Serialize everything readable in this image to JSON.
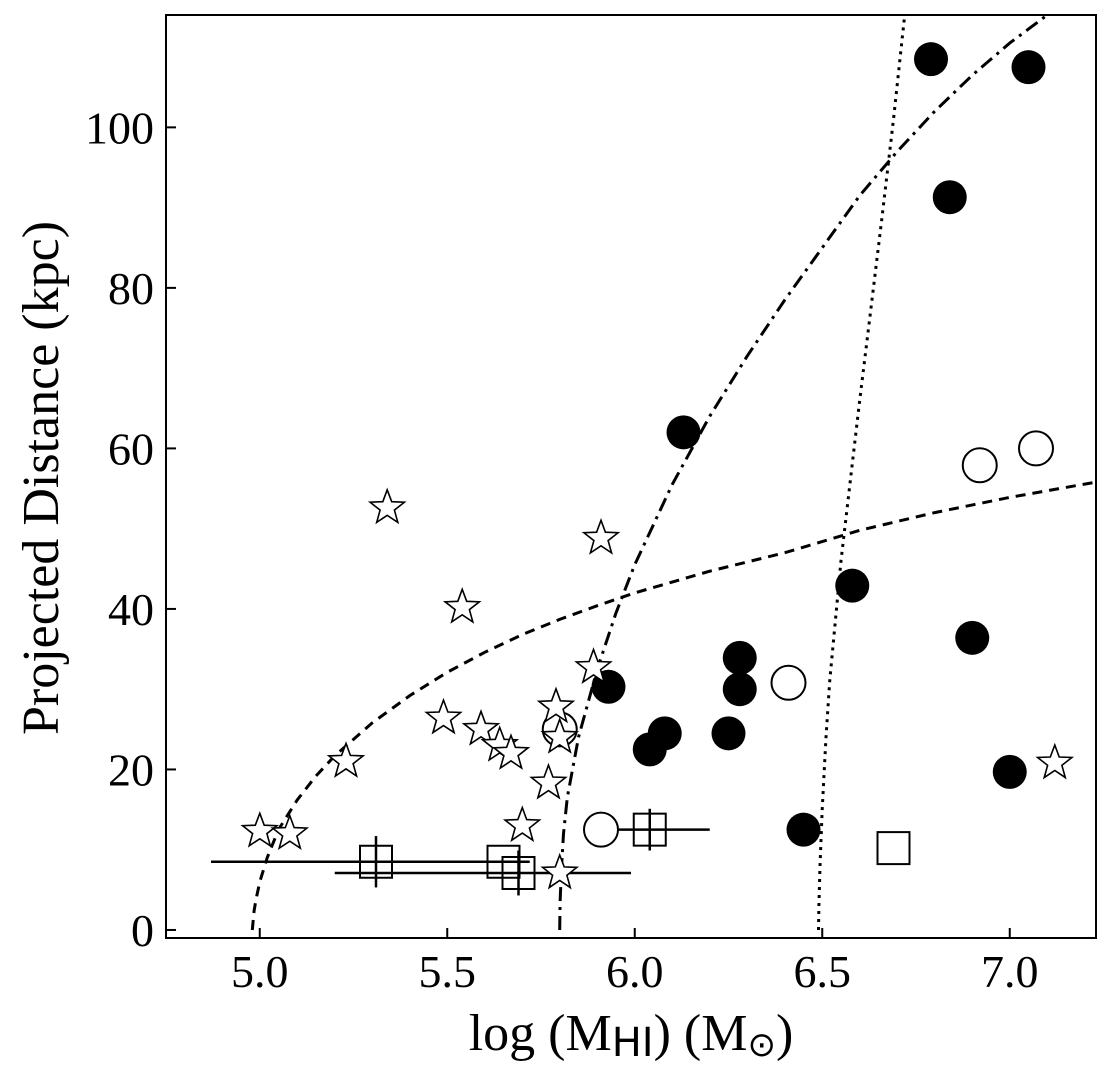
{
  "chart_data": {
    "type": "scatter",
    "xlabel": "log (M",
    "xlabel_sub": "HI",
    "xlabel_tail": ") (M",
    "xlabel_sun_symbol": "⊙",
    "xlabel_end": ")",
    "ylabel": "Projected Distance (kpc)",
    "xlim": [
      4.75,
      7.23
    ],
    "ylim": [
      -1,
      114
    ],
    "xticks": [
      5.0,
      5.5,
      6.0,
      6.5,
      7.0
    ],
    "xtick_labels": [
      "5.0",
      "5.5",
      "6.0",
      "6.5",
      "7.0"
    ],
    "yticks": [
      0,
      20,
      40,
      60,
      80,
      100
    ],
    "ytick_labels": [
      "0",
      "20",
      "40",
      "60",
      "80",
      "100"
    ],
    "series": [
      {
        "name": "filled-circles",
        "marker": "filled-circle",
        "points": [
          [
            6.79,
            108.5
          ],
          [
            7.05,
            107.5
          ],
          [
            6.84,
            91.3
          ],
          [
            6.13,
            62.0
          ],
          [
            5.93,
            30.3
          ],
          [
            6.04,
            22.5
          ],
          [
            6.08,
            24.5
          ],
          [
            6.25,
            24.5
          ],
          [
            6.28,
            33.9
          ],
          [
            6.28,
            30.0
          ],
          [
            6.58,
            42.9
          ],
          [
            6.9,
            36.4
          ],
          [
            7.0,
            19.7
          ],
          [
            6.45,
            12.5
          ]
        ]
      },
      {
        "name": "open-circles",
        "marker": "open-circle",
        "points": [
          [
            6.92,
            57.9
          ],
          [
            7.07,
            60.0
          ],
          [
            6.41,
            30.8
          ],
          [
            5.8,
            25.0
          ],
          [
            5.91,
            12.5
          ]
        ]
      },
      {
        "name": "open-squares",
        "marker": "open-square",
        "points": [
          {
            "x": 5.31,
            "y": 8.5,
            "xerr": [
              0.44,
              0.41
            ],
            "yerr": 3.2
          },
          {
            "x": 5.65,
            "y": 8.5
          },
          {
            "x": 5.69,
            "y": 7.1,
            "xerr": [
              0.49,
              0.3
            ],
            "yerr": 2.8
          },
          {
            "x": 6.04,
            "y": 12.5,
            "xerr": [
              0.16,
              0.16
            ],
            "yerr": 2.6
          },
          {
            "x": 6.69,
            "y": 10.2
          }
        ]
      },
      {
        "name": "open-stars",
        "marker": "open-star",
        "points": [
          [
            5.0,
            12.3
          ],
          [
            5.08,
            12.0
          ],
          [
            5.23,
            21.0
          ],
          [
            5.34,
            52.6
          ],
          [
            5.49,
            26.4
          ],
          [
            5.54,
            40.2
          ],
          [
            5.59,
            25.0
          ],
          [
            5.64,
            23.0
          ],
          [
            5.67,
            22.0
          ],
          [
            5.7,
            13.0
          ],
          [
            5.77,
            18.3
          ],
          [
            5.79,
            27.8
          ],
          [
            5.8,
            24.0
          ],
          [
            5.8,
            7.1
          ],
          [
            5.89,
            32.7
          ],
          [
            5.91,
            48.8
          ],
          [
            7.12,
            20.8
          ]
        ]
      }
    ],
    "curves": [
      {
        "name": "dashed-curve",
        "style": "dashed",
        "x": [
          4.98,
          4.985,
          4.99,
          5.0,
          5.02,
          5.05,
          5.1,
          5.15,
          5.2,
          5.3,
          5.4,
          5.5,
          5.6,
          5.7,
          5.8,
          5.9,
          6.0,
          6.2,
          6.4,
          6.6,
          6.8,
          7.0,
          7.23
        ],
        "y": [
          0.0,
          2.4,
          3.8,
          6.0,
          9.0,
          12.5,
          16.2,
          19.2,
          21.7,
          25.8,
          29.2,
          32.1,
          34.6,
          36.8,
          38.7,
          40.4,
          42.0,
          44.7,
          47.0,
          49.8,
          52.0,
          53.9,
          55.8
        ]
      },
      {
        "name": "dash-dot-curve",
        "style": "dashdot",
        "x": [
          5.8,
          5.801,
          5.805,
          5.81,
          5.82,
          5.85,
          5.9,
          5.95,
          6.0,
          6.1,
          6.2,
          6.3,
          6.4,
          6.5,
          6.6,
          6.7,
          6.8,
          6.9,
          7.0,
          7.1
        ],
        "y": [
          0.0,
          3.5,
          8.0,
          12.0,
          16.5,
          24.0,
          32.5,
          39.5,
          45.5,
          55.5,
          64.0,
          71.5,
          78.5,
          85.0,
          91.5,
          97.0,
          102.0,
          106.5,
          110.5,
          114.0
        ]
      },
      {
        "name": "dotted-curve",
        "style": "dotted",
        "x": [
          6.49,
          6.491,
          6.494,
          6.5,
          6.51,
          6.52,
          6.55,
          6.58,
          6.6,
          6.63,
          6.66,
          6.69,
          6.72
        ],
        "y": [
          0.0,
          3.0,
          8.0,
          15.0,
          24.0,
          31.0,
          46.0,
          58.0,
          66.0,
          77.5,
          89.0,
          101.0,
          114.0
        ]
      }
    ]
  }
}
